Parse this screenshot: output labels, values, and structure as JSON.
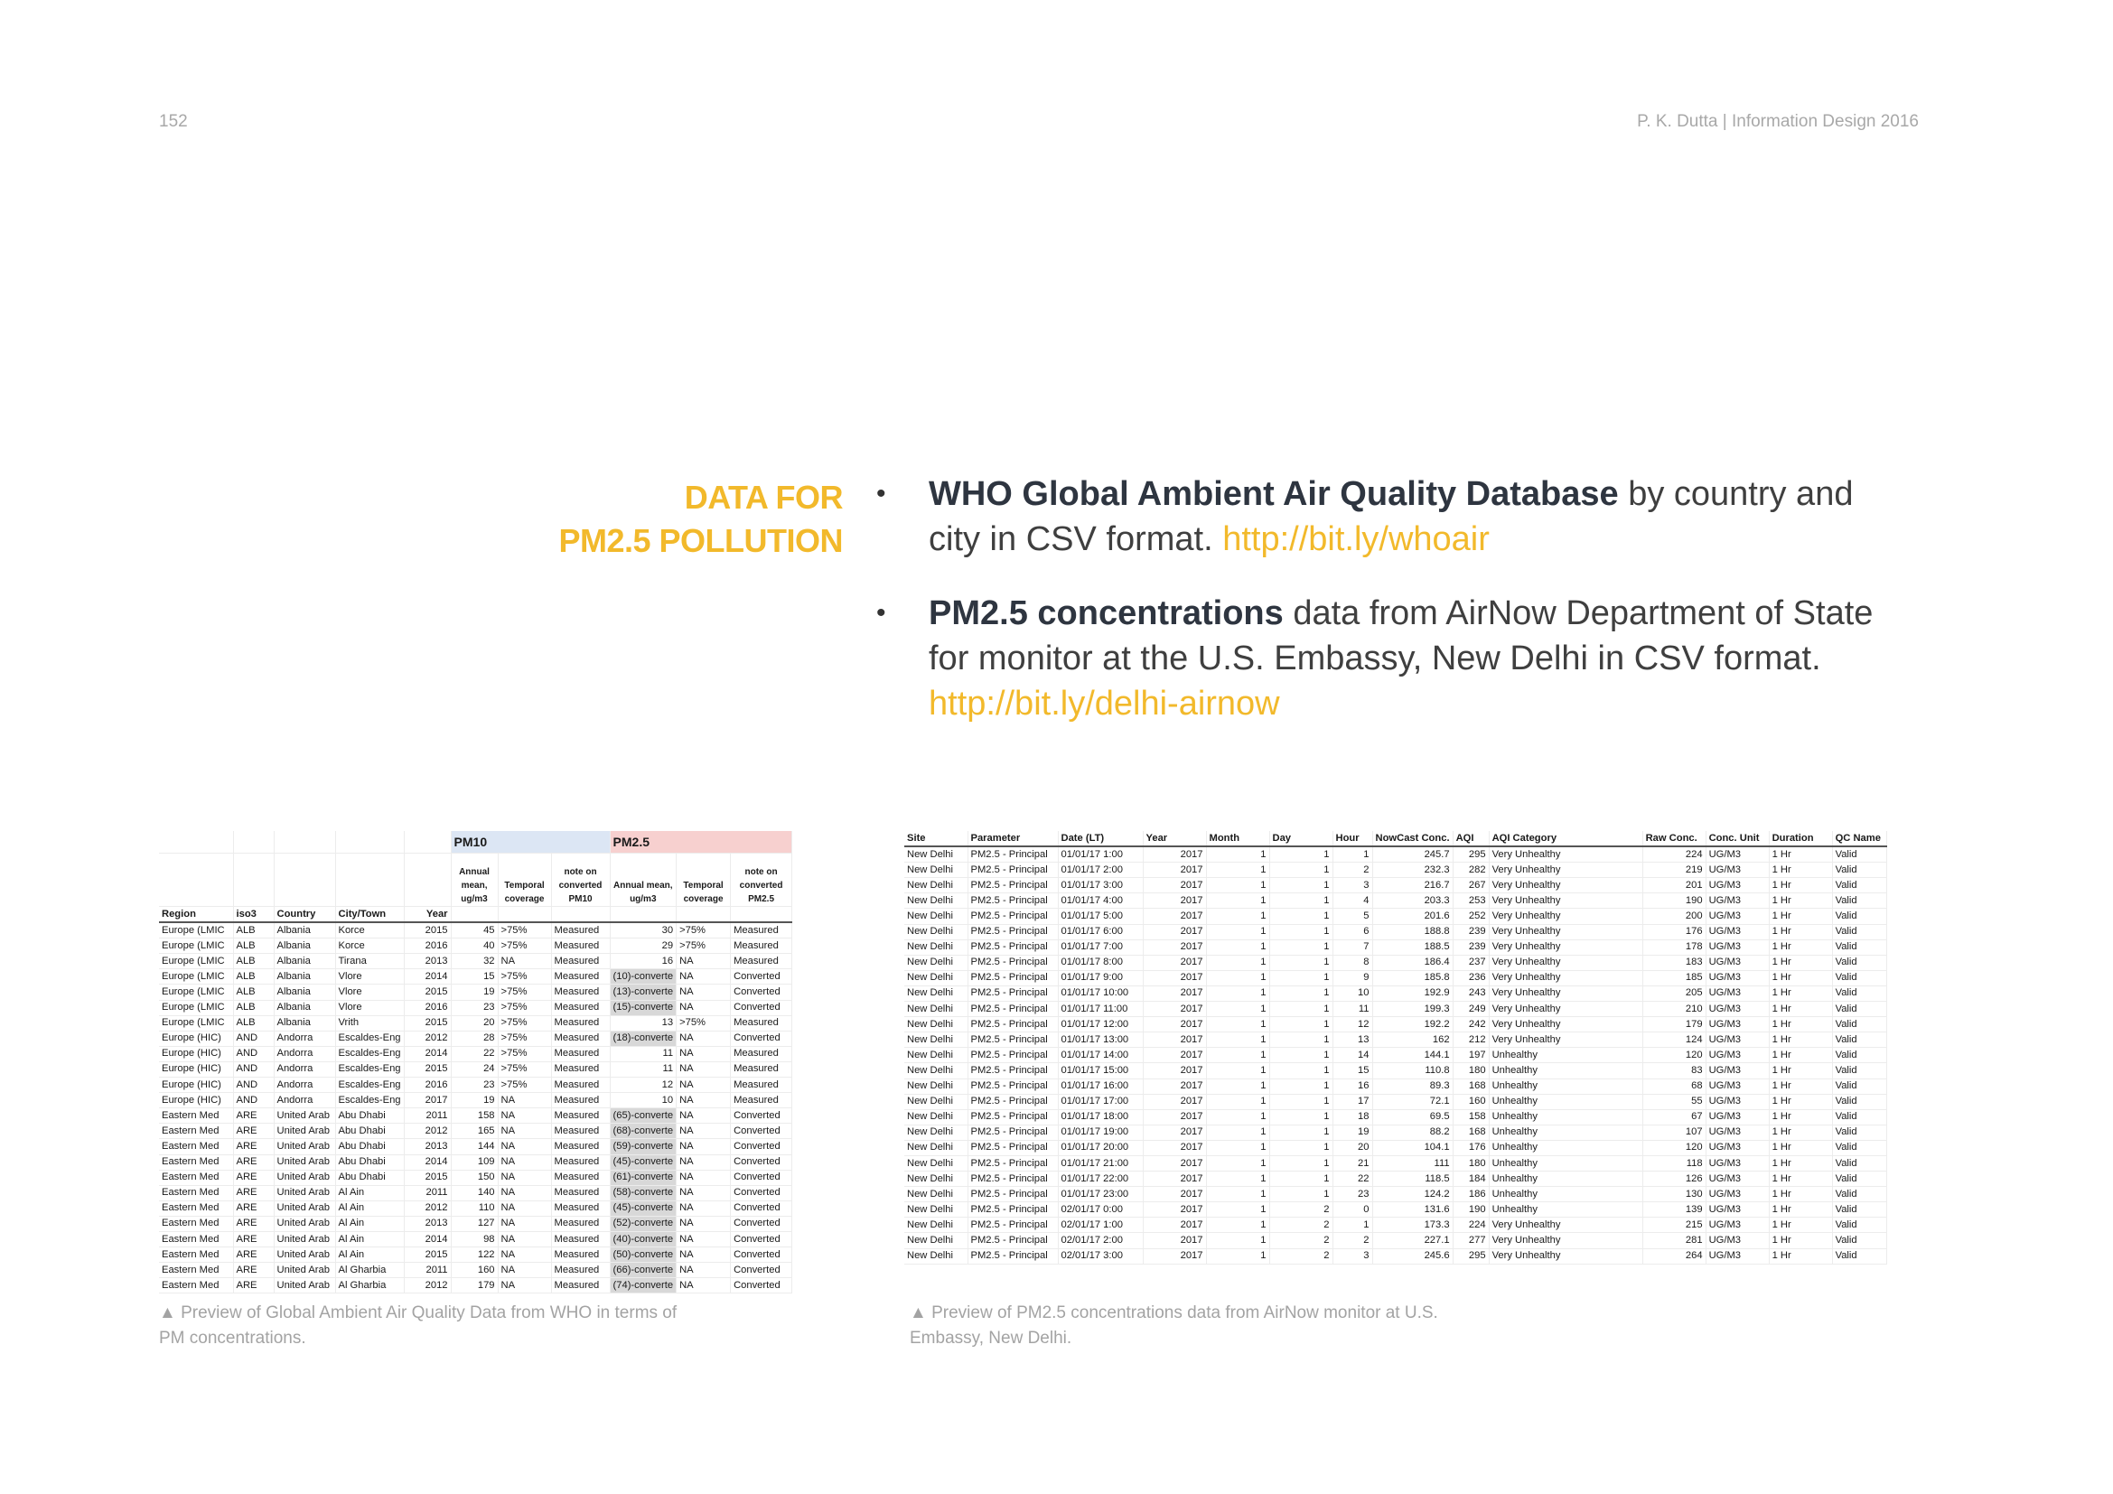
{
  "header": {
    "page_number": "152",
    "credit": "P. K. Dutta | Information Design 2016"
  },
  "section": {
    "title_line1": "DATA FOR",
    "title_line2": "PM2.5 POLLUTION"
  },
  "bullets": [
    {
      "bold": "WHO Global Ambient Air Quality Database",
      "text": " by country and city in CSV format. ",
      "link": "http://bit.ly/whoair"
    },
    {
      "bold": "PM2.5 concentrations",
      "text": " data from AirNow Department of State for monitor at the U.S. Embassy, New Delhi in CSV format. ",
      "link": "http://bit.ly/delhi-airnow"
    }
  ],
  "captions": {
    "who": "▲ Preview of Global Ambient Air Quality Data from WHO in terms of PM concentrations.",
    "airnow": "▲ Preview of PM2.5 concentrations data from AirNow monitor at U.S. Embassy, New Delhi."
  },
  "who_table": {
    "group_headers": [
      "PM10",
      "PM2.5"
    ],
    "sub_headers": [
      "Annual mean, ug/m3",
      "Temporal coverage",
      "note on converted PM10",
      "Annual mean, ug/m3",
      "Temporal coverage",
      "note on converted PM2.5"
    ],
    "columns": [
      "Region",
      "iso3",
      "Country",
      "City/Town",
      "Year"
    ],
    "rows": [
      [
        "Europe (LMIC",
        "ALB",
        "Albania",
        "Korce",
        "2015",
        "45",
        ">75%",
        "Measured",
        "30",
        ">75%",
        "Measured"
      ],
      [
        "Europe (LMIC",
        "ALB",
        "Albania",
        "Korce",
        "2016",
        "40",
        ">75%",
        "Measured",
        "29",
        ">75%",
        "Measured"
      ],
      [
        "Europe (LMIC",
        "ALB",
        "Albania",
        "Tirana",
        "2013",
        "32",
        "NA",
        "Measured",
        "16",
        "NA",
        "Measured"
      ],
      [
        "Europe (LMIC",
        "ALB",
        "Albania",
        "Vlore",
        "2014",
        "15",
        ">75%",
        "Measured",
        "(10)-converte",
        "NA",
        "Converted"
      ],
      [
        "Europe (LMIC",
        "ALB",
        "Albania",
        "Vlore",
        "2015",
        "19",
        ">75%",
        "Measured",
        "(13)-converte",
        "NA",
        "Converted"
      ],
      [
        "Europe (LMIC",
        "ALB",
        "Albania",
        "Vlore",
        "2016",
        "23",
        ">75%",
        "Measured",
        "(15)-converte",
        "NA",
        "Converted"
      ],
      [
        "Europe (LMIC",
        "ALB",
        "Albania",
        "Vrith",
        "2015",
        "20",
        ">75%",
        "Measured",
        "13",
        ">75%",
        "Measured"
      ],
      [
        "Europe (HIC)",
        "AND",
        "Andorra",
        "Escaldes-Eng",
        "2012",
        "28",
        ">75%",
        "Measured",
        "(18)-converte",
        "NA",
        "Converted"
      ],
      [
        "Europe (HIC)",
        "AND",
        "Andorra",
        "Escaldes-Eng",
        "2014",
        "22",
        ">75%",
        "Measured",
        "11",
        "NA",
        "Measured"
      ],
      [
        "Europe (HIC)",
        "AND",
        "Andorra",
        "Escaldes-Eng",
        "2015",
        "24",
        ">75%",
        "Measured",
        "11",
        "NA",
        "Measured"
      ],
      [
        "Europe (HIC)",
        "AND",
        "Andorra",
        "Escaldes-Eng",
        "2016",
        "23",
        ">75%",
        "Measured",
        "12",
        "NA",
        "Measured"
      ],
      [
        "Europe (HIC)",
        "AND",
        "Andorra",
        "Escaldes-Eng",
        "2017",
        "19",
        "NA",
        "Measured",
        "10",
        "NA",
        "Measured"
      ],
      [
        "Eastern Med",
        "ARE",
        "United Arab",
        "Abu Dhabi",
        "2011",
        "158",
        "NA",
        "Measured",
        "(65)-converte",
        "NA",
        "Converted"
      ],
      [
        "Eastern Med",
        "ARE",
        "United Arab",
        "Abu Dhabi",
        "2012",
        "165",
        "NA",
        "Measured",
        "(68)-converte",
        "NA",
        "Converted"
      ],
      [
        "Eastern Med",
        "ARE",
        "United Arab",
        "Abu Dhabi",
        "2013",
        "144",
        "NA",
        "Measured",
        "(59)-converte",
        "NA",
        "Converted"
      ],
      [
        "Eastern Med",
        "ARE",
        "United Arab",
        "Abu Dhabi",
        "2014",
        "109",
        "NA",
        "Measured",
        "(45)-converte",
        "NA",
        "Converted"
      ],
      [
        "Eastern Med",
        "ARE",
        "United Arab",
        "Abu Dhabi",
        "2015",
        "150",
        "NA",
        "Measured",
        "(61)-converte",
        "NA",
        "Converted"
      ],
      [
        "Eastern Med",
        "ARE",
        "United Arab",
        "Al Ain",
        "2011",
        "140",
        "NA",
        "Measured",
        "(58)-converte",
        "NA",
        "Converted"
      ],
      [
        "Eastern Med",
        "ARE",
        "United Arab",
        "Al Ain",
        "2012",
        "110",
        "NA",
        "Measured",
        "(45)-converte",
        "NA",
        "Converted"
      ],
      [
        "Eastern Med",
        "ARE",
        "United Arab",
        "Al Ain",
        "2013",
        "127",
        "NA",
        "Measured",
        "(52)-converte",
        "NA",
        "Converted"
      ],
      [
        "Eastern Med",
        "ARE",
        "United Arab",
        "Al Ain",
        "2014",
        "98",
        "NA",
        "Measured",
        "(40)-converte",
        "NA",
        "Converted"
      ],
      [
        "Eastern Med",
        "ARE",
        "United Arab",
        "Al Ain",
        "2015",
        "122",
        "NA",
        "Measured",
        "(50)-converte",
        "NA",
        "Converted"
      ],
      [
        "Eastern Med",
        "ARE",
        "United Arab",
        "Al Gharbia",
        "2011",
        "160",
        "NA",
        "Measured",
        "(66)-converte",
        "NA",
        "Converted"
      ],
      [
        "Eastern Med",
        "ARE",
        "United Arab",
        "Al Gharbia",
        "2012",
        "179",
        "NA",
        "Measured",
        "(74)-converte",
        "NA",
        "Converted"
      ]
    ]
  },
  "airnow_table": {
    "columns": [
      "Site",
      "Parameter",
      "Date (LT)",
      "Year",
      "Month",
      "Day",
      "Hour",
      "NowCast Conc.",
      "AQI",
      "AQI Category",
      "Raw Conc.",
      "Conc. Unit",
      "Duration",
      "QC Name"
    ],
    "rows": [
      [
        "New Delhi",
        "PM2.5 - Principal",
        "01/01/17 1:00",
        "2017",
        "1",
        "1",
        "1",
        "245.7",
        "295",
        "Very Unhealthy",
        "224",
        "UG/M3",
        "1 Hr",
        "Valid"
      ],
      [
        "New Delhi",
        "PM2.5 - Principal",
        "01/01/17 2:00",
        "2017",
        "1",
        "1",
        "2",
        "232.3",
        "282",
        "Very Unhealthy",
        "219",
        "UG/M3",
        "1 Hr",
        "Valid"
      ],
      [
        "New Delhi",
        "PM2.5 - Principal",
        "01/01/17 3:00",
        "2017",
        "1",
        "1",
        "3",
        "216.7",
        "267",
        "Very Unhealthy",
        "201",
        "UG/M3",
        "1 Hr",
        "Valid"
      ],
      [
        "New Delhi",
        "PM2.5 - Principal",
        "01/01/17 4:00",
        "2017",
        "1",
        "1",
        "4",
        "203.3",
        "253",
        "Very Unhealthy",
        "190",
        "UG/M3",
        "1 Hr",
        "Valid"
      ],
      [
        "New Delhi",
        "PM2.5 - Principal",
        "01/01/17 5:00",
        "2017",
        "1",
        "1",
        "5",
        "201.6",
        "252",
        "Very Unhealthy",
        "200",
        "UG/M3",
        "1 Hr",
        "Valid"
      ],
      [
        "New Delhi",
        "PM2.5 - Principal",
        "01/01/17 6:00",
        "2017",
        "1",
        "1",
        "6",
        "188.8",
        "239",
        "Very Unhealthy",
        "176",
        "UG/M3",
        "1 Hr",
        "Valid"
      ],
      [
        "New Delhi",
        "PM2.5 - Principal",
        "01/01/17 7:00",
        "2017",
        "1",
        "1",
        "7",
        "188.5",
        "239",
        "Very Unhealthy",
        "178",
        "UG/M3",
        "1 Hr",
        "Valid"
      ],
      [
        "New Delhi",
        "PM2.5 - Principal",
        "01/01/17 8:00",
        "2017",
        "1",
        "1",
        "8",
        "186.4",
        "237",
        "Very Unhealthy",
        "183",
        "UG/M3",
        "1 Hr",
        "Valid"
      ],
      [
        "New Delhi",
        "PM2.5 - Principal",
        "01/01/17 9:00",
        "2017",
        "1",
        "1",
        "9",
        "185.8",
        "236",
        "Very Unhealthy",
        "185",
        "UG/M3",
        "1 Hr",
        "Valid"
      ],
      [
        "New Delhi",
        "PM2.5 - Principal",
        "01/01/17 10:00",
        "2017",
        "1",
        "1",
        "10",
        "192.9",
        "243",
        "Very Unhealthy",
        "205",
        "UG/M3",
        "1 Hr",
        "Valid"
      ],
      [
        "New Delhi",
        "PM2.5 - Principal",
        "01/01/17 11:00",
        "2017",
        "1",
        "1",
        "11",
        "199.3",
        "249",
        "Very Unhealthy",
        "210",
        "UG/M3",
        "1 Hr",
        "Valid"
      ],
      [
        "New Delhi",
        "PM2.5 - Principal",
        "01/01/17 12:00",
        "2017",
        "1",
        "1",
        "12",
        "192.2",
        "242",
        "Very Unhealthy",
        "179",
        "UG/M3",
        "1 Hr",
        "Valid"
      ],
      [
        "New Delhi",
        "PM2.5 - Principal",
        "01/01/17 13:00",
        "2017",
        "1",
        "1",
        "13",
        "162",
        "212",
        "Very Unhealthy",
        "124",
        "UG/M3",
        "1 Hr",
        "Valid"
      ],
      [
        "New Delhi",
        "PM2.5 - Principal",
        "01/01/17 14:00",
        "2017",
        "1",
        "1",
        "14",
        "144.1",
        "197",
        "Unhealthy",
        "120",
        "UG/M3",
        "1 Hr",
        "Valid"
      ],
      [
        "New Delhi",
        "PM2.5 - Principal",
        "01/01/17 15:00",
        "2017",
        "1",
        "1",
        "15",
        "110.8",
        "180",
        "Unhealthy",
        "83",
        "UG/M3",
        "1 Hr",
        "Valid"
      ],
      [
        "New Delhi",
        "PM2.5 - Principal",
        "01/01/17 16:00",
        "2017",
        "1",
        "1",
        "16",
        "89.3",
        "168",
        "Unhealthy",
        "68",
        "UG/M3",
        "1 Hr",
        "Valid"
      ],
      [
        "New Delhi",
        "PM2.5 - Principal",
        "01/01/17 17:00",
        "2017",
        "1",
        "1",
        "17",
        "72.1",
        "160",
        "Unhealthy",
        "55",
        "UG/M3",
        "1 Hr",
        "Valid"
      ],
      [
        "New Delhi",
        "PM2.5 - Principal",
        "01/01/17 18:00",
        "2017",
        "1",
        "1",
        "18",
        "69.5",
        "158",
        "Unhealthy",
        "67",
        "UG/M3",
        "1 Hr",
        "Valid"
      ],
      [
        "New Delhi",
        "PM2.5 - Principal",
        "01/01/17 19:00",
        "2017",
        "1",
        "1",
        "19",
        "88.2",
        "168",
        "Unhealthy",
        "107",
        "UG/M3",
        "1 Hr",
        "Valid"
      ],
      [
        "New Delhi",
        "PM2.5 - Principal",
        "01/01/17 20:00",
        "2017",
        "1",
        "1",
        "20",
        "104.1",
        "176",
        "Unhealthy",
        "120",
        "UG/M3",
        "1 Hr",
        "Valid"
      ],
      [
        "New Delhi",
        "PM2.5 - Principal",
        "01/01/17 21:00",
        "2017",
        "1",
        "1",
        "21",
        "111",
        "180",
        "Unhealthy",
        "118",
        "UG/M3",
        "1 Hr",
        "Valid"
      ],
      [
        "New Delhi",
        "PM2.5 - Principal",
        "01/01/17 22:00",
        "2017",
        "1",
        "1",
        "22",
        "118.5",
        "184",
        "Unhealthy",
        "126",
        "UG/M3",
        "1 Hr",
        "Valid"
      ],
      [
        "New Delhi",
        "PM2.5 - Principal",
        "01/01/17 23:00",
        "2017",
        "1",
        "1",
        "23",
        "124.2",
        "186",
        "Unhealthy",
        "130",
        "UG/M3",
        "1 Hr",
        "Valid"
      ],
      [
        "New Delhi",
        "PM2.5 - Principal",
        "02/01/17 0:00",
        "2017",
        "1",
        "2",
        "0",
        "131.6",
        "190",
        "Unhealthy",
        "139",
        "UG/M3",
        "1 Hr",
        "Valid"
      ],
      [
        "New Delhi",
        "PM2.5 - Principal",
        "02/01/17 1:00",
        "2017",
        "1",
        "2",
        "1",
        "173.3",
        "224",
        "Very Unhealthy",
        "215",
        "UG/M3",
        "1 Hr",
        "Valid"
      ],
      [
        "New Delhi",
        "PM2.5 - Principal",
        "02/01/17 2:00",
        "2017",
        "1",
        "2",
        "2",
        "227.1",
        "277",
        "Very Unhealthy",
        "281",
        "UG/M3",
        "1 Hr",
        "Valid"
      ],
      [
        "New Delhi",
        "PM2.5 - Principal",
        "02/01/17 3:00",
        "2017",
        "1",
        "2",
        "3",
        "245.6",
        "295",
        "Very Unhealthy",
        "264",
        "UG/M3",
        "1 Hr",
        "Valid"
      ]
    ]
  }
}
